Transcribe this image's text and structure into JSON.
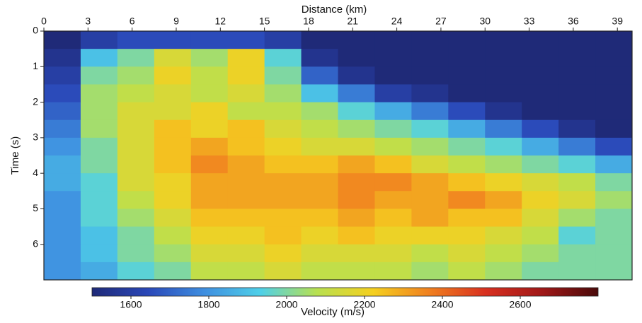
{
  "chart_data": {
    "type": "heatmap",
    "xlabel": "Distance (km)",
    "ylabel": "Time (s)",
    "xaxis_position": "top",
    "y_inverted": true,
    "xlim": [
      0,
      40
    ],
    "ylim": [
      0,
      7
    ],
    "xticks": [
      0,
      3,
      6,
      9,
      12,
      15,
      18,
      21,
      24,
      27,
      30,
      33,
      36,
      39
    ],
    "yticks": [
      0,
      1,
      2,
      3,
      4,
      5,
      6
    ],
    "x_edges": [
      0,
      2.5,
      5,
      7.5,
      10,
      12.5,
      15,
      17.5,
      20,
      22.5,
      25,
      27.5,
      30,
      32.5,
      35,
      37.5,
      40
    ],
    "y_edges": [
      0,
      0.5,
      1,
      1.5,
      2,
      2.5,
      3,
      3.5,
      4,
      4.5,
      5,
      5.5,
      6,
      6.5,
      7
    ],
    "z": [
      [
        1500,
        1600,
        1650,
        1650,
        1650,
        1650,
        1600,
        1500,
        1500,
        1500,
        1500,
        1500,
        1500,
        1500,
        1500,
        1500
      ],
      [
        1550,
        1900,
        2000,
        2150,
        2050,
        2200,
        1950,
        1550,
        1500,
        1500,
        1500,
        1500,
        1500,
        1500,
        1500,
        1500
      ],
      [
        1600,
        2000,
        2050,
        2200,
        2100,
        2200,
        2000,
        1700,
        1550,
        1500,
        1500,
        1500,
        1500,
        1500,
        1500,
        1500
      ],
      [
        1650,
        2050,
        2100,
        2150,
        2100,
        2150,
        2050,
        1900,
        1750,
        1600,
        1550,
        1500,
        1500,
        1500,
        1500,
        1500
      ],
      [
        1700,
        2050,
        2150,
        2150,
        2200,
        2100,
        2100,
        2050,
        1950,
        1850,
        1750,
        1650,
        1550,
        1500,
        1500,
        1500
      ],
      [
        1750,
        2050,
        2150,
        2250,
        2200,
        2250,
        2150,
        2100,
        2050,
        2000,
        1950,
        1850,
        1750,
        1650,
        1550,
        1500
      ],
      [
        1800,
        2000,
        2150,
        2250,
        2300,
        2250,
        2200,
        2150,
        2150,
        2100,
        2050,
        2000,
        1950,
        1850,
        1750,
        1650
      ],
      [
        1850,
        2000,
        2150,
        2250,
        2350,
        2300,
        2250,
        2250,
        2300,
        2250,
        2150,
        2100,
        2050,
        2000,
        1950,
        1850
      ],
      [
        1850,
        1950,
        2150,
        2200,
        2300,
        2300,
        2300,
        2300,
        2350,
        2350,
        2300,
        2250,
        2200,
        2150,
        2100,
        2000
      ],
      [
        1800,
        1950,
        2100,
        2200,
        2300,
        2300,
        2300,
        2300,
        2350,
        2300,
        2300,
        2350,
        2300,
        2200,
        2150,
        2050
      ],
      [
        1800,
        1950,
        2050,
        2150,
        2250,
        2250,
        2250,
        2250,
        2300,
        2250,
        2300,
        2250,
        2250,
        2150,
        2050,
        2000
      ],
      [
        1800,
        1900,
        2000,
        2100,
        2200,
        2200,
        2250,
        2200,
        2250,
        2200,
        2200,
        2200,
        2150,
        2100,
        1950,
        2000
      ],
      [
        1800,
        1900,
        2000,
        2050,
        2150,
        2150,
        2200,
        2150,
        2150,
        2150,
        2100,
        2150,
        2100,
        2050,
        2000,
        2000
      ],
      [
        1800,
        1850,
        1950,
        2000,
        2100,
        2100,
        2150,
        2100,
        2100,
        2100,
        2050,
        2100,
        2050,
        2000,
        2000,
        2000
      ]
    ],
    "colorbar": {
      "label": "Velocity (m/s)",
      "lim": [
        1500,
        2800
      ],
      "ticks": [
        1600,
        1800,
        2000,
        2200,
        2400,
        2600
      ],
      "colormap": [
        "#1f2a78",
        "#2a48b8",
        "#3f8fe0",
        "#4fd0e8",
        "#b8e050",
        "#f5d020",
        "#f08020",
        "#d83020",
        "#a01818",
        "#4a0a0a"
      ]
    }
  }
}
